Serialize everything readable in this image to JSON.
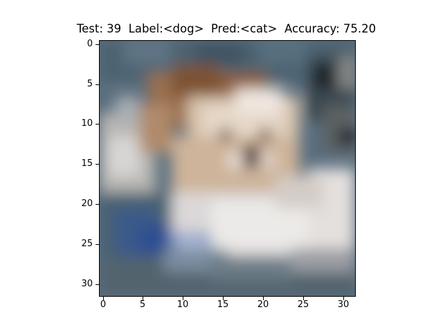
{
  "figure": {
    "title": "Test: 39  Label:<dog>  Pred:<cat>  Accuracy: 75.20"
  },
  "image": {
    "description_type": "32x32 pixelated photo",
    "background_color": "#5a6e7e"
  },
  "axes": {
    "xticks": [
      "0",
      "5",
      "10",
      "15",
      "20",
      "25",
      "30"
    ],
    "yticks": [
      "0",
      "5",
      "10",
      "15",
      "20",
      "25",
      "30"
    ]
  }
}
